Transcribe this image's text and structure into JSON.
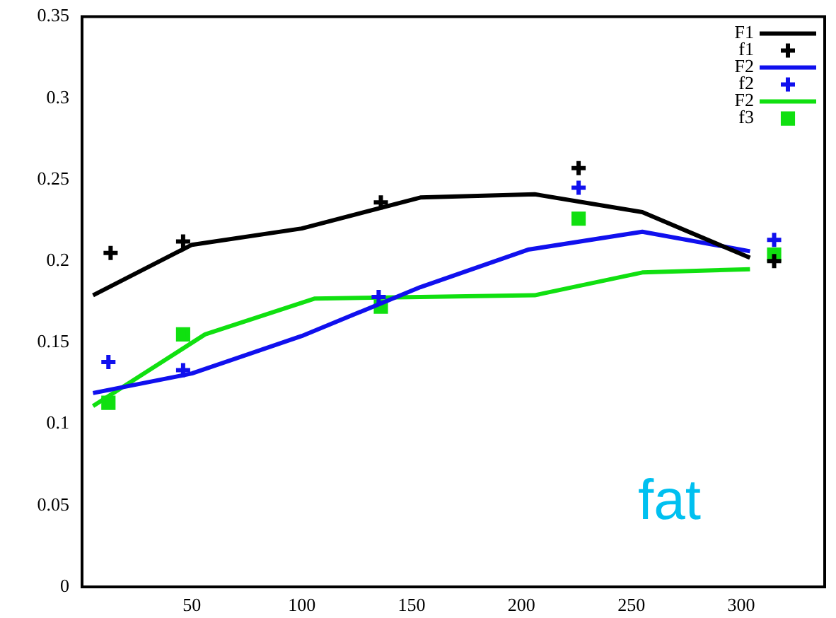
{
  "chart_data": {
    "type": "line",
    "annotations": [
      "fat"
    ],
    "xlim": [
      0,
      338
    ],
    "xticks": [
      50,
      100,
      150,
      200,
      250,
      300
    ],
    "ylim": [
      0,
      0.35
    ],
    "yticks": [
      0,
      0.05,
      0.1,
      0.15,
      0.2,
      0.25,
      0.3,
      0.35
    ],
    "grid": false,
    "legend": "top right",
    "series": [
      {
        "name": "F1",
        "color": "#000000",
        "marker": "none",
        "x": [
          5,
          50,
          100,
          154,
          206,
          255,
          304
        ],
        "values": [
          0.179,
          0.21,
          0.22,
          0.239,
          0.241,
          0.23,
          0.202
        ]
      },
      {
        "name": "f1",
        "type": "scatter",
        "color": "#000000",
        "marker": "cross",
        "x": [
          13,
          46,
          136,
          226,
          315
        ],
        "values": [
          0.205,
          0.212,
          0.236,
          0.257,
          0.2
        ]
      },
      {
        "name": "F2",
        "color": "#1010ee",
        "marker": "none",
        "x": [
          5,
          50,
          100,
          154,
          203,
          255,
          304
        ],
        "values": [
          0.119,
          0.131,
          0.154,
          0.184,
          0.207,
          0.218,
          0.206
        ]
      },
      {
        "name": "f2",
        "type": "scatter",
        "color": "#1010ee",
        "marker": "cross",
        "x": [
          12,
          46,
          135,
          226,
          315
        ],
        "values": [
          0.138,
          0.133,
          0.178,
          0.245,
          0.213
        ]
      },
      {
        "name": "F2",
        "color": "#10e010",
        "marker": "none",
        "x": [
          5,
          56,
          106,
          154,
          206,
          255,
          304
        ],
        "values": [
          0.111,
          0.155,
          0.177,
          0.178,
          0.179,
          0.193,
          0.195
        ]
      },
      {
        "name": "f3",
        "type": "scatter",
        "color": "#10e010",
        "marker": "square",
        "x": [
          12,
          46,
          136,
          226,
          315
        ],
        "values": [
          0.113,
          0.155,
          0.172,
          0.226,
          0.204
        ]
      }
    ]
  }
}
